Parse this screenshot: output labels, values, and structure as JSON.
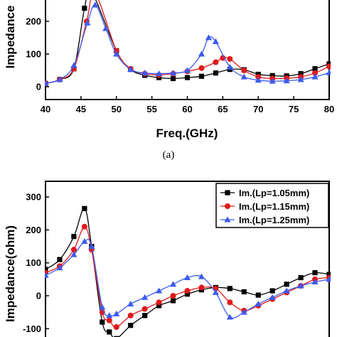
{
  "chart_data": [
    {
      "type": "line",
      "xlabel": "Freq.(GHz)",
      "ylabel": "Impedance",
      "caption": "(a)",
      "xlim": [
        40,
        80
      ],
      "ylim": [
        -10,
        285
      ],
      "xticks": [
        40,
        45,
        50,
        55,
        60,
        65,
        70,
        75,
        80
      ],
      "yticks": [
        0,
        100,
        200
      ],
      "grid": false,
      "series": [
        {
          "color": "#000000",
          "marker": "square",
          "x": [
            40,
            42,
            44,
            45.5,
            46.5,
            50,
            52,
            54,
            56,
            58,
            60,
            62,
            64,
            66,
            68,
            70,
            72,
            74,
            76,
            78,
            80
          ],
          "y": [
            10,
            22,
            55,
            240,
            290,
            110,
            53,
            35,
            28,
            25,
            28,
            32,
            42,
            53,
            52,
            38,
            34,
            33,
            40,
            55,
            70
          ]
        },
        {
          "color": "#e0191b",
          "marker": "circle",
          "x": [
            40,
            42,
            44,
            45.8,
            47,
            50,
            52,
            54,
            56,
            58,
            60,
            62,
            64,
            65,
            66,
            68,
            70,
            72,
            74,
            76,
            78,
            80
          ],
          "y": [
            10,
            22,
            55,
            200,
            285,
            110,
            55,
            40,
            36,
            40,
            47,
            57,
            75,
            88,
            85,
            50,
            30,
            25,
            26,
            30,
            42,
            62
          ]
        },
        {
          "color": "#3b5bf0",
          "marker": "triangle",
          "x": [
            40,
            42,
            44,
            45.9,
            47,
            48.5,
            50,
            52,
            54,
            56,
            58,
            60,
            62,
            63,
            64,
            66,
            68,
            70,
            72,
            74,
            76,
            78,
            80
          ],
          "y": [
            10,
            22,
            65,
            195,
            250,
            178,
            100,
            53,
            42,
            40,
            42,
            50,
            100,
            150,
            138,
            60,
            30,
            20,
            17,
            18,
            22,
            30,
            43
          ]
        }
      ]
    },
    {
      "type": "line",
      "ylabel": "Impedance(ohm)",
      "xlim": [
        40,
        80
      ],
      "ylim": [
        -130,
        350
      ],
      "yticks": [
        -100,
        0,
        100,
        200,
        300
      ],
      "grid": false,
      "legend_position": "top-right",
      "series": [
        {
          "name": "Im.(Lp=1.05mm)",
          "color": "#000000",
          "marker": "square",
          "x": [
            40,
            42,
            44,
            45.5,
            46.5,
            48,
            49,
            50,
            52,
            54,
            56,
            58,
            60,
            62,
            64,
            66,
            68,
            70,
            72,
            74,
            76,
            78,
            80
          ],
          "y": [
            80,
            110,
            180,
            265,
            150,
            -80,
            -110,
            -130,
            -90,
            -60,
            -30,
            -15,
            5,
            18,
            25,
            22,
            12,
            2,
            15,
            35,
            55,
            70,
            65
          ]
        },
        {
          "name": "Im.(Lp=1.15mm)",
          "color": "#e0191b",
          "marker": "circle",
          "x": [
            40,
            42,
            44,
            45.5,
            46.5,
            48,
            49,
            50,
            52,
            54,
            56,
            58,
            60,
            62,
            64,
            66,
            68,
            70,
            72,
            74,
            76,
            78,
            80
          ],
          "y": [
            70,
            90,
            140,
            210,
            140,
            -50,
            -75,
            -95,
            -60,
            -40,
            -20,
            0,
            15,
            25,
            22,
            -20,
            -45,
            -30,
            -10,
            10,
            30,
            50,
            55
          ]
        },
        {
          "name": "Im.(Lp=1.25mm)",
          "color": "#3b5bf0",
          "marker": "triangle",
          "x": [
            40,
            42,
            44,
            45.5,
            46.5,
            48,
            49,
            50,
            52,
            54,
            56,
            58,
            60,
            62,
            64,
            66,
            68,
            70,
            72,
            74,
            76,
            78,
            80
          ],
          "y": [
            62,
            85,
            125,
            165,
            150,
            -35,
            -60,
            -55,
            -25,
            -5,
            15,
            35,
            55,
            58,
            10,
            -65,
            -50,
            -25,
            -5,
            15,
            30,
            42,
            50
          ]
        }
      ]
    }
  ]
}
